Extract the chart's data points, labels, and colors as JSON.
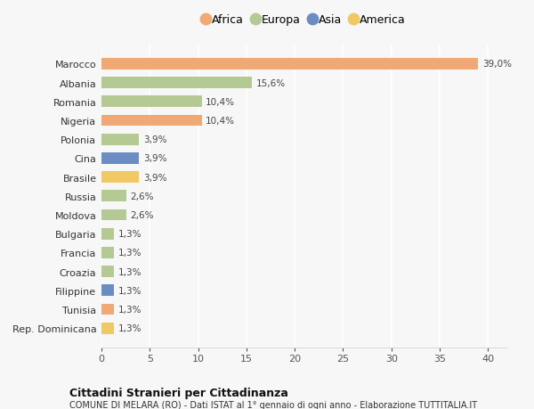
{
  "countries": [
    "Marocco",
    "Albania",
    "Romania",
    "Nigeria",
    "Polonia",
    "Cina",
    "Brasile",
    "Russia",
    "Moldova",
    "Bulgaria",
    "Francia",
    "Croazia",
    "Filippine",
    "Tunisia",
    "Rep. Dominicana"
  ],
  "values": [
    39.0,
    15.6,
    10.4,
    10.4,
    3.9,
    3.9,
    3.9,
    2.6,
    2.6,
    1.3,
    1.3,
    1.3,
    1.3,
    1.3,
    1.3
  ],
  "labels": [
    "39,0%",
    "15,6%",
    "10,4%",
    "10,4%",
    "3,9%",
    "3,9%",
    "3,9%",
    "2,6%",
    "2,6%",
    "1,3%",
    "1,3%",
    "1,3%",
    "1,3%",
    "1,3%",
    "1,3%"
  ],
  "continents": [
    "Africa",
    "Europa",
    "Europa",
    "Africa",
    "Europa",
    "Asia",
    "America",
    "Europa",
    "Europa",
    "Europa",
    "Europa",
    "Europa",
    "Asia",
    "Africa",
    "America"
  ],
  "continent_colors": {
    "Africa": "#F0A875",
    "Europa": "#B5C994",
    "Asia": "#6B8DC4",
    "America": "#F0C864"
  },
  "legend_order": [
    "Africa",
    "Europa",
    "Asia",
    "America"
  ],
  "title1": "Cittadini Stranieri per Cittadinanza",
  "title2": "COMUNE DI MELARA (RO) - Dati ISTAT al 1° gennaio di ogni anno - Elaborazione TUTTITALIA.IT",
  "xlim": [
    0,
    42
  ],
  "xticks": [
    0,
    5,
    10,
    15,
    20,
    25,
    30,
    35,
    40
  ],
  "background_color": "#f7f7f7",
  "grid_color": "#ffffff",
  "bar_height": 0.6
}
